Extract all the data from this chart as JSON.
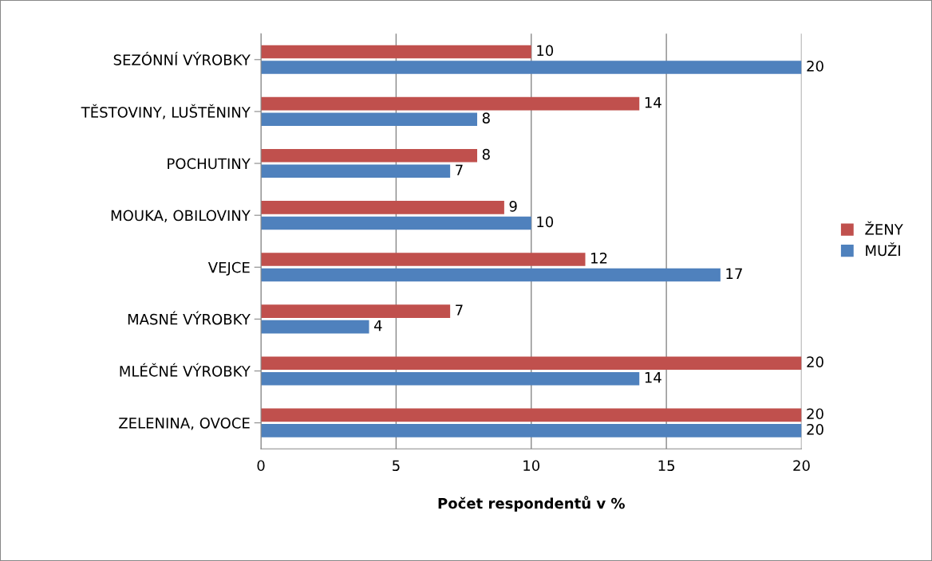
{
  "chart_data": {
    "type": "bar",
    "orientation": "horizontal",
    "xlabel": "Počet respondentů v %",
    "categories": [
      "SEZÓNNÍ VÝROBKY",
      "TĚSTOVINY, LUŠTĚNINY",
      "POCHUTINY",
      "MOUKA, OBILOVINY",
      "VEJCE",
      "MASNÉ VÝROBKY",
      "MLÉČNÉ VÝROBKY",
      "ZELENINA, OVOCE"
    ],
    "series": [
      {
        "name": "ŽENY",
        "color": "#c0504d",
        "values": [
          10,
          14,
          8,
          9,
          12,
          7,
          20,
          20
        ]
      },
      {
        "name": "MUŽI",
        "color": "#4f81bd",
        "values": [
          20,
          8,
          7,
          10,
          17,
          4,
          14,
          20
        ]
      }
    ],
    "xlim": [
      0,
      20
    ],
    "xticks": [
      0,
      5,
      10,
      15,
      20
    ],
    "grid": "x",
    "legend": "right",
    "data_labels": true
  }
}
